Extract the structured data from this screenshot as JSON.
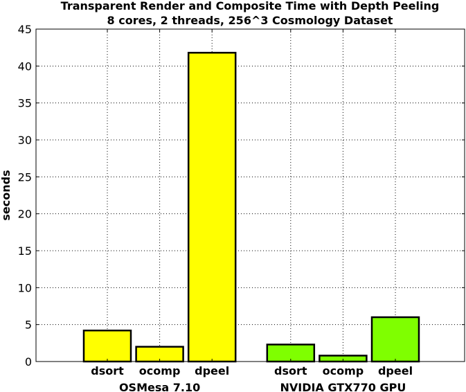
{
  "chart_data": {
    "type": "bar",
    "title": "Transparent Render and Composite Time with Depth Peeling",
    "subtitle": "8 cores, 2 threads, 256^3 Cosmology Dataset",
    "xlabel": "",
    "ylabel": "seconds",
    "ylim": [
      0,
      45
    ],
    "yticks": [
      0,
      5,
      10,
      15,
      20,
      25,
      30,
      35,
      40,
      45
    ],
    "grid": true,
    "groups": [
      {
        "name": "OSMesa 7.10",
        "color": "#ffff00",
        "categories": [
          "dsort",
          "ocomp",
          "dpeel"
        ],
        "values": [
          4.2,
          2.0,
          41.8
        ]
      },
      {
        "name": "NVIDIA GTX770 GPU",
        "color": "#7fff00",
        "categories": [
          "dsort",
          "ocomp",
          "dpeel"
        ],
        "values": [
          2.3,
          0.8,
          6.0
        ]
      }
    ]
  }
}
